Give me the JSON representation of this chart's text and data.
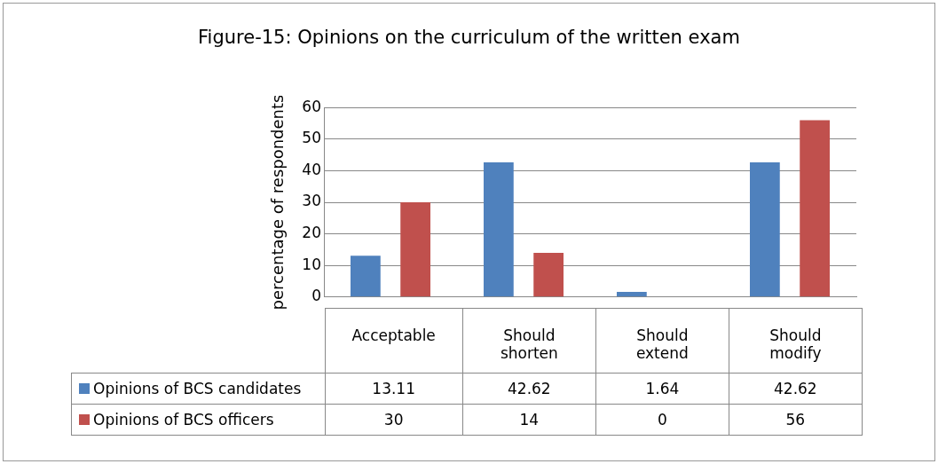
{
  "chart_data": {
    "type": "bar",
    "title": "Figure-15: Opinions on the curriculum of the written exam",
    "ylabel": "percentage of respondents",
    "categories": [
      "Acceptable",
      "Should shorten",
      "Should extend",
      "Should modify"
    ],
    "series": [
      {
        "name": "Opinions of BCS candidates",
        "color": "#4f81bd",
        "values": [
          13.11,
          42.62,
          1.64,
          42.62
        ]
      },
      {
        "name": "Opinions of BCS officers",
        "color": "#c0504d",
        "values": [
          30,
          14,
          0,
          56
        ]
      }
    ],
    "ylim": [
      0,
      60
    ],
    "yticks": [
      0,
      10,
      20,
      30,
      40,
      50,
      60
    ],
    "grid": "y",
    "legend": "bottom",
    "data_labels": true
  }
}
